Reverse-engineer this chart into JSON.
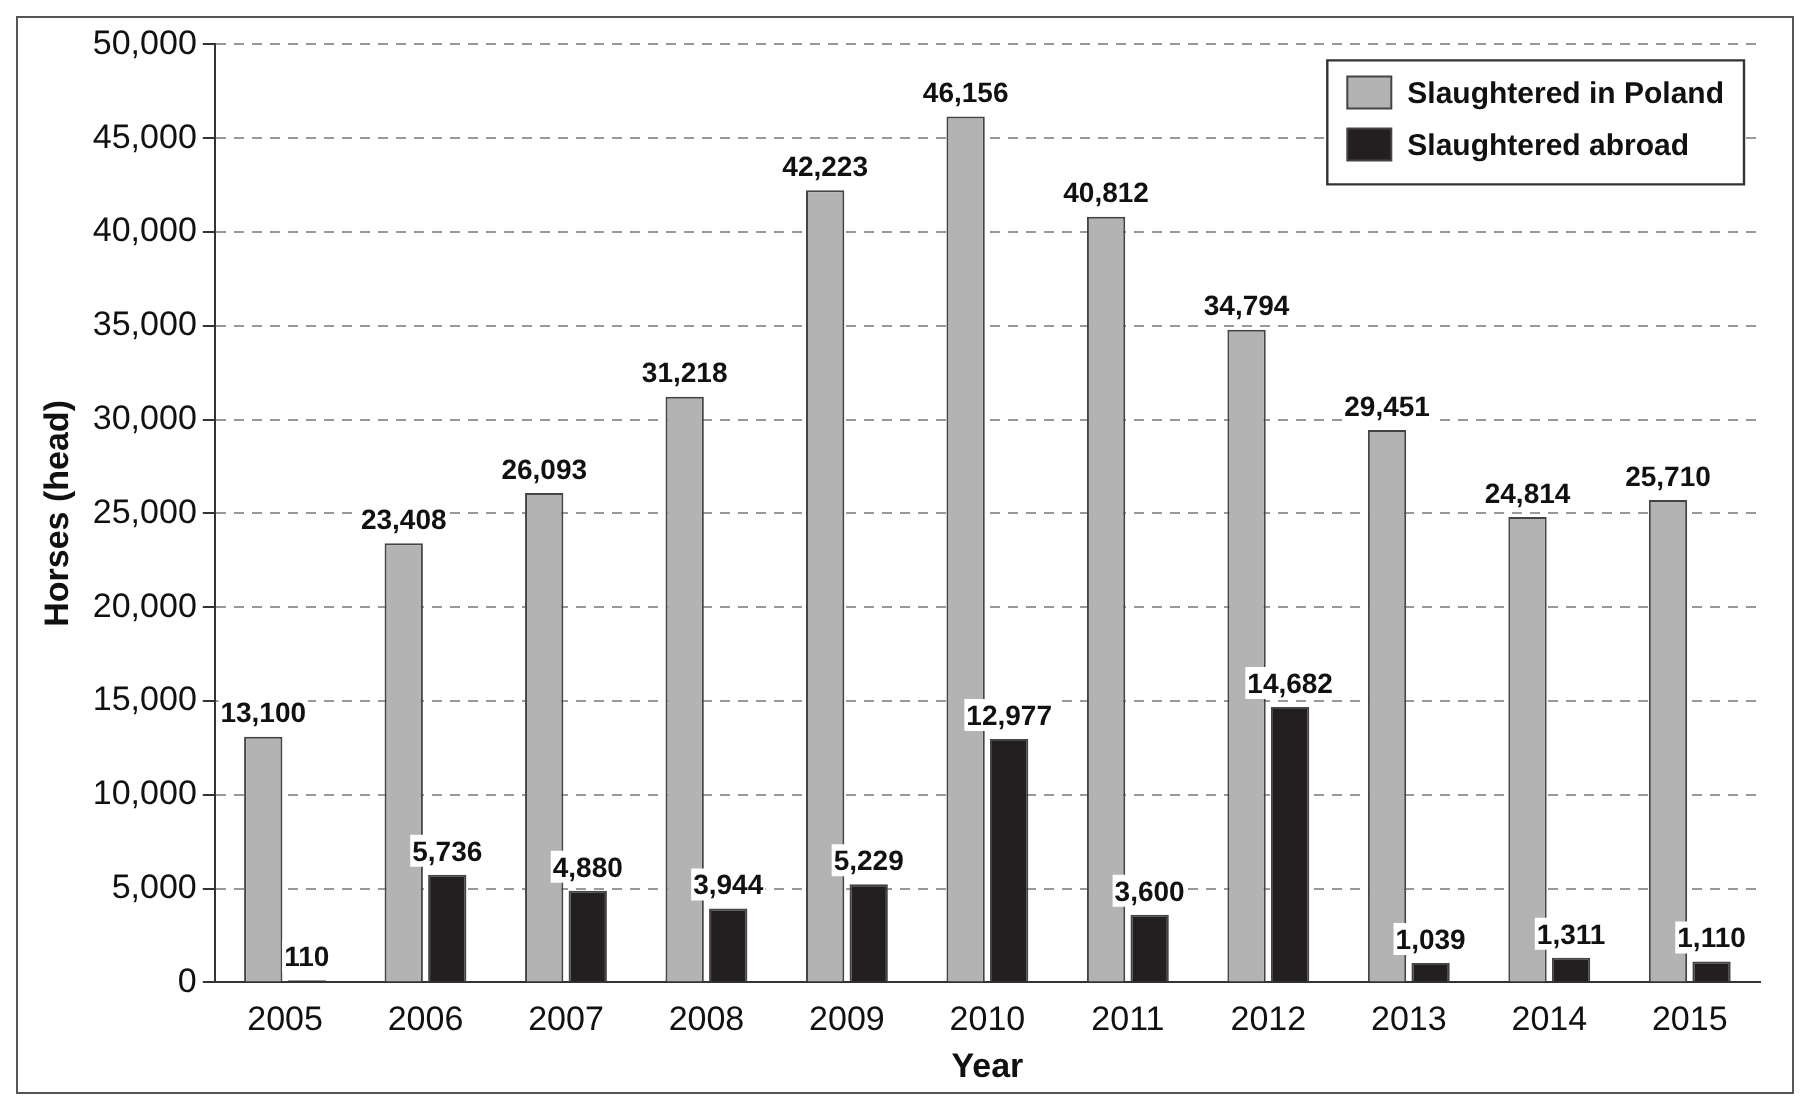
{
  "chart_data": {
    "type": "bar",
    "xlabel": "Year",
    "ylabel": "Horses (head)",
    "categories": [
      "2005",
      "2006",
      "2007",
      "2008",
      "2009",
      "2010",
      "2011",
      "2012",
      "2013",
      "2014",
      "2015"
    ],
    "series": [
      {
        "name": "Slaughtered in Poland",
        "color": "#b3b3b3",
        "values": [
          13100,
          23408,
          26093,
          31218,
          42223,
          46156,
          40812,
          34794,
          29451,
          24814,
          25710
        ],
        "value_labels": [
          "13,100",
          "23,408",
          "26,093",
          "31,218",
          "42,223",
          "46,156",
          "40,812",
          "34,794",
          "29,451",
          "24,814",
          "25,710"
        ]
      },
      {
        "name": "Slaughtered abroad",
        "color": "#231f20",
        "values": [
          110,
          5736,
          4880,
          3944,
          5229,
          12977,
          3600,
          14682,
          1039,
          1311,
          1110
        ],
        "value_labels": [
          "110",
          "5,736",
          "4,880",
          "3,944",
          "5,229",
          "12,977",
          "3,600",
          "14,682",
          "1,039",
          "1,311",
          "1,110"
        ]
      }
    ],
    "ylim": [
      0,
      50000
    ],
    "yticks": [
      0,
      {
        "value": 5000,
        "label": "5,000"
      },
      {
        "value": 10000,
        "label": "10,000"
      },
      {
        "value": 15000,
        "label": "15,000"
      },
      {
        "value": 20000,
        "label": "20,000"
      },
      {
        "value": 25000,
        "label": "25,000"
      },
      {
        "value": 30000,
        "label": "30,000"
      },
      {
        "value": 35000,
        "label": "35,000"
      },
      {
        "value": 40000,
        "label": "40,000"
      },
      {
        "value": 45000,
        "label": "45,000"
      },
      {
        "value": 50000,
        "label": "50,000"
      }
    ],
    "grid": "y",
    "legend": "top right"
  }
}
